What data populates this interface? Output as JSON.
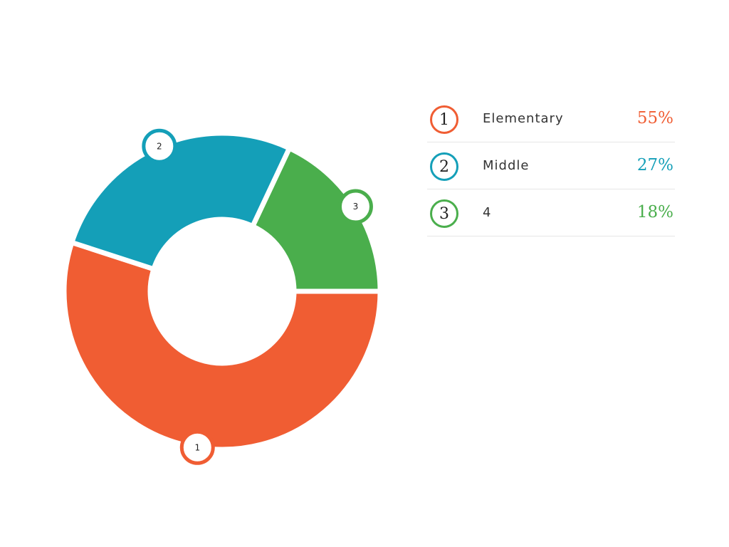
{
  "chart_data": {
    "type": "pie",
    "donut": true,
    "legend_placement": "right",
    "categories": [
      "Elementary",
      "Middle",
      "4"
    ],
    "values": [
      55,
      27,
      18
    ],
    "value_labels": [
      "55%",
      "27%",
      "18%"
    ],
    "markers": [
      "1",
      "2",
      "3"
    ],
    "colors": [
      "#f05d33",
      "#149fb8",
      "#4aae4c"
    ]
  }
}
